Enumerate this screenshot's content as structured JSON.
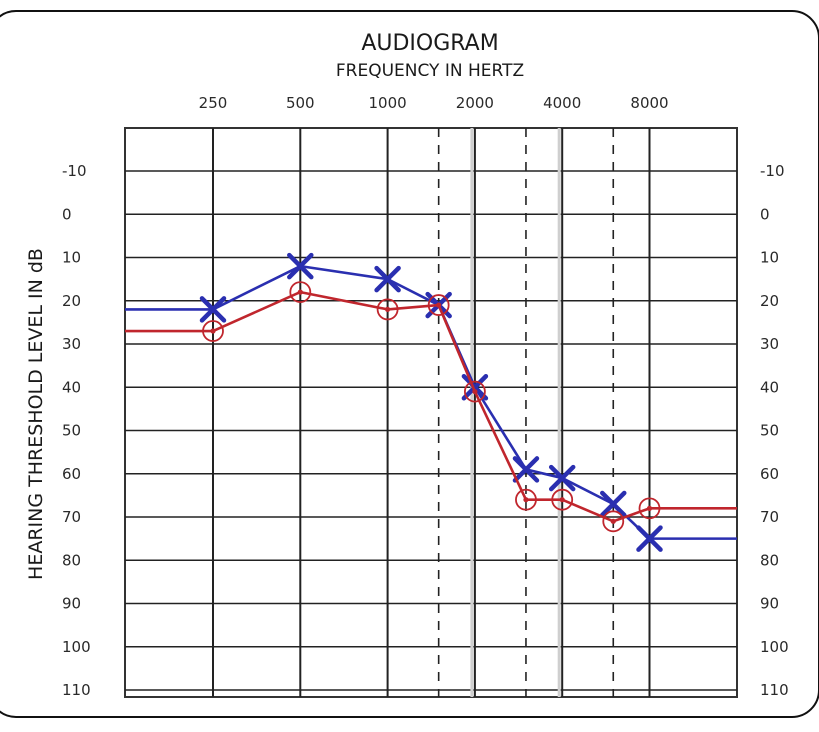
{
  "chart_data": {
    "type": "line",
    "title": "AUDIOGRAM",
    "subtitle": "FREQUENCY IN HERTZ",
    "xlabel": "FREQUENCY IN HERTZ",
    "ylabel": "HEARING THRESHOLD LEVEL IN dB",
    "x_tick_labels": [
      "250",
      "500",
      "1000",
      "2000",
      "4000",
      "8000"
    ],
    "x_ticks": [
      250,
      500,
      1000,
      2000,
      4000,
      8000
    ],
    "inter_octave_ticks": [
      1500,
      3000,
      6000
    ],
    "x_scale": "log",
    "y_tick_labels": [
      "-10",
      "0",
      "10",
      "20",
      "30",
      "40",
      "50",
      "60",
      "70",
      "80",
      "90",
      "100",
      "110"
    ],
    "ylim": [
      -10,
      110
    ],
    "y_inverted": true,
    "grid": true,
    "series": [
      {
        "marker": "x",
        "color": "#2a2fb0",
        "x": [
          250,
          500,
          1000,
          1500,
          2000,
          3000,
          4000,
          6000,
          8000
        ],
        "values": [
          22,
          12,
          15,
          21,
          40,
          59,
          61,
          67,
          75
        ],
        "left_extension": 22,
        "right_extension": 75
      },
      {
        "marker": "circle",
        "color": "#c0262d",
        "x": [
          250,
          500,
          1000,
          1500,
          2000,
          3000,
          4000,
          6000,
          8000
        ],
        "values": [
          27,
          18,
          22,
          21,
          41,
          66,
          66,
          71,
          68
        ],
        "left_extension": 27,
        "right_extension": 68
      }
    ]
  }
}
